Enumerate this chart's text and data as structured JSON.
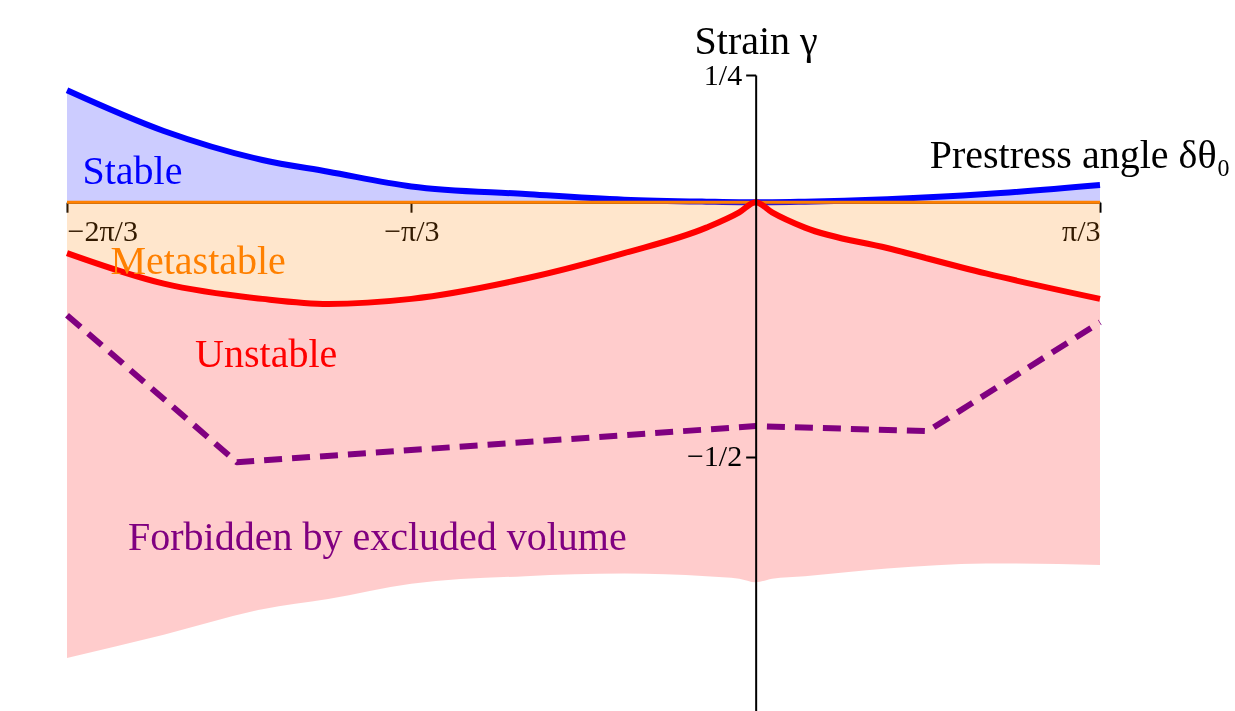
{
  "chart_data": {
    "type": "area",
    "xlabel": "Prestress angle δθ₀",
    "ylabel": "Strain γ",
    "x": [
      -2.0944,
      -1.8,
      -1.5,
      -1.3,
      -1.0472,
      -0.7,
      -0.4,
      -0.15,
      -0.05,
      0,
      0.05,
      0.15,
      0.4,
      0.7,
      1.0472
    ],
    "xlim": [
      -2.0944,
      1.0472
    ],
    "xticks": [
      {
        "value": -2.0944,
        "label": "−2π/3"
      },
      {
        "value": -1.0472,
        "label": "−π/3"
      },
      {
        "value": 1.0472,
        "label": "π/3"
      }
    ],
    "ylim": [
      -1,
      0.25
    ],
    "yticks": [
      {
        "value": 0.25,
        "label": "1/4"
      },
      {
        "value": -0.5,
        "label": "−1/2"
      }
    ],
    "series": [
      {
        "type": "area",
        "color": "#0000ff",
        "values": [
          0.22,
          0.14,
          0.083,
          0.06,
          0.031,
          0.016,
          0.005,
          0.001,
          0,
          0,
          0,
          0.001,
          0.006,
          0.016,
          0.034
        ]
      },
      {
        "type": "line",
        "color": "#ff8000",
        "values": [
          0,
          0,
          0,
          0,
          0,
          0,
          0,
          0,
          0,
          0,
          0,
          0,
          0,
          0,
          0
        ],
        "upper": [
          0,
          0,
          0,
          0,
          0,
          0,
          0,
          0,
          0,
          0,
          0,
          0,
          0,
          0,
          0
        ],
        "lower": [
          -0.1,
          -0.16,
          -0.19,
          -0.2,
          -0.19,
          -0.15,
          -0.1,
          -0.05,
          -0.02,
          0,
          -0.02,
          -0.05,
          -0.09,
          -0.14,
          -0.19
        ]
      },
      {
        "type": "line",
        "color": "#ff0000",
        "values": [
          -0.1,
          -0.16,
          -0.19,
          -0.2,
          -0.19,
          -0.15,
          -0.1,
          -0.05,
          -0.02,
          0,
          -0.02,
          -0.05,
          -0.09,
          -0.14,
          -0.19
        ],
        "upper": [
          -0.1,
          -0.16,
          -0.19,
          -0.2,
          -0.19,
          -0.15,
          -0.1,
          -0.05,
          -0.02,
          0,
          -0.02,
          -0.05,
          -0.09,
          -0.14,
          -0.19
        ],
        "lower": [
          -0.896,
          -0.85,
          -0.8,
          -0.78,
          -0.75,
          -0.735,
          -0.73,
          -0.735,
          -0.74,
          -0.747,
          -0.74,
          -0.735,
          -0.72,
          -0.71,
          -0.713
        ]
      },
      {
        "type": "line",
        "color": "#800080",
        "line_style": "dashed",
        "x": [
          -2.0944,
          -1.578,
          0,
          0.523,
          1.0472
        ],
        "values": [
          -0.222,
          -0.511,
          -0.44,
          -0.45,
          -0.236
        ]
      }
    ],
    "annotations": [
      "Stable",
      "Metastable",
      "Unstable",
      "Forbidden by excluded volume"
    ],
    "grid": false,
    "marker": "none"
  }
}
